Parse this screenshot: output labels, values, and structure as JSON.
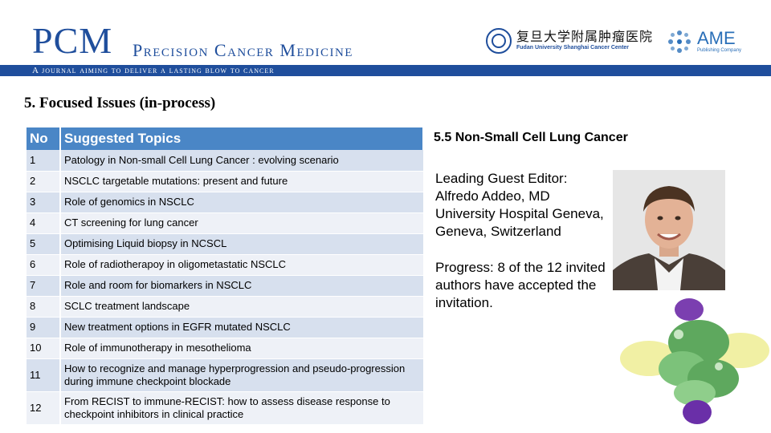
{
  "header": {
    "logo": "PCM",
    "journal_name": "Precision Cancer Medicine",
    "tagline": "A journal aiming to deliver a lasting blow to cancer",
    "partner_cn": "复旦大学附属肿瘤医院",
    "partner_en": "Fudan University Shanghai Cancer Center",
    "publisher": "AME",
    "publisher_sub": "Publishing Company",
    "brand_color": "#1f4e9c"
  },
  "section_title": "5. Focused Issues (in-process)",
  "table": {
    "headers": [
      "No",
      "Suggested Topics"
    ],
    "header_color": "#4a86c6",
    "rows": [
      {
        "no": "1",
        "topic": "Patology in Non-small Cell Lung Cancer : evolving scenario"
      },
      {
        "no": "2",
        "topic": "NSCLC targetable mutations: present and future"
      },
      {
        "no": "3",
        "topic": "Role of genomics in NSCLC"
      },
      {
        "no": "4",
        "topic": "CT screening for lung cancer"
      },
      {
        "no": "5",
        "topic": "Optimising Liquid biopsy in NCSCL"
      },
      {
        "no": "6",
        "topic": "Role of radiotherapoy in oligometastatic NSCLC"
      },
      {
        "no": "7",
        "topic": "Role and room for biomarkers in NSCLC"
      },
      {
        "no": "8",
        "topic": "SCLC treatment landscape"
      },
      {
        "no": "9",
        "topic": "New treatment options in EGFR mutated NSCLC"
      },
      {
        "no": "10",
        "topic": "Role of immunotherapy in mesothelioma"
      },
      {
        "no": "11",
        "topic": "How to recognize and manage hyperprogression and pseudo-progression during immune checkpoint blockade"
      },
      {
        "no": "12",
        "topic": "From RECIST to immune-RECIST: how to assess disease response to checkpoint inhibitors in clinical practice"
      }
    ]
  },
  "issue": {
    "title": "5.5 Non-Small Cell Lung Cancer",
    "editor_lines": [
      "Leading Guest Editor:",
      "Alfredo Addeo, MD",
      "University Hospital Geneva,",
      "Geneva, Switzerland"
    ],
    "progress_lines": [
      "Progress: 8 of the 12 invited",
      "authors have accepted the",
      "invitation."
    ]
  }
}
